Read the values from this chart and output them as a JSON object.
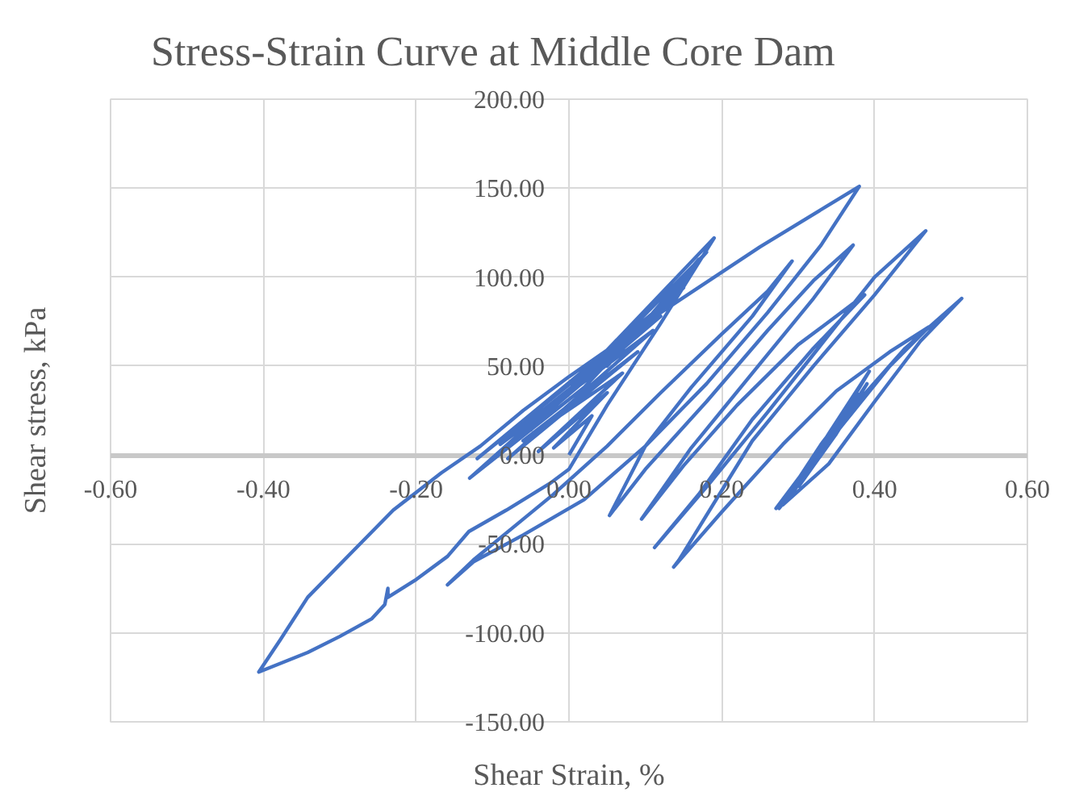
{
  "chart_data": {
    "type": "line",
    "title": "Stress-Strain Curve at Middle Core Dam",
    "xlabel": "Shear Strain, %",
    "ylabel": "Shear stress, kPa",
    "series": [
      {
        "color": "#4472c4",
        "x": [
          0.0,
          0.03,
          -0.02,
          0.05,
          -0.04,
          0.07,
          -0.06,
          0.09,
          -0.08,
          0.11,
          -0.09,
          0.12,
          -0.11,
          0.14,
          -0.12,
          0.15,
          -0.13,
          0.02,
          0.16,
          0.05,
          0.17,
          0.07,
          0.18,
          -0.05,
          0.19,
          0.12,
          0.05,
          0.0,
          -0.025,
          -0.082,
          -0.131,
          -0.159,
          -0.2,
          -0.237,
          -0.237,
          -0.241,
          -0.258,
          -0.3,
          -0.342,
          -0.406,
          -0.378,
          -0.342,
          -0.285,
          -0.23,
          -0.167,
          -0.116,
          -0.06,
          0.0,
          0.12,
          0.25,
          0.38,
          0.33,
          0.26,
          0.18,
          0.1,
          0.02,
          -0.06,
          -0.125,
          -0.159,
          -0.125,
          -0.074,
          -0.02,
          0.05,
          0.12,
          0.2,
          0.26,
          0.292,
          0.24,
          0.16,
          0.1,
          0.053,
          0.1,
          0.18,
          0.26,
          0.32,
          0.372,
          0.32,
          0.24,
          0.16,
          0.095,
          0.15,
          0.22,
          0.3,
          0.35,
          0.387,
          0.32,
          0.24,
          0.17,
          0.112,
          0.18,
          0.26,
          0.33,
          0.4,
          0.467,
          0.4,
          0.32,
          0.24,
          0.144,
          0.137,
          0.2,
          0.28,
          0.35,
          0.42,
          0.471,
          0.42,
          0.36,
          0.3,
          0.271,
          0.32,
          0.376,
          0.44,
          0.514,
          0.46,
          0.4,
          0.34,
          0.28,
          0.33,
          0.393,
          0.34,
          0.285,
          0.34,
          0.376,
          0.32,
          0.275,
          0.33,
          0.38,
          0.33,
          0.29,
          0.35,
          0.39,
          0.35,
          0.3
        ],
        "values": [
          0,
          22,
          4,
          35,
          2,
          46,
          8,
          58,
          -2,
          70,
          6,
          78,
          -6,
          88,
          -2,
          94,
          -13,
          38,
          102,
          50,
          110,
          60,
          114,
          14,
          122,
          74,
          28,
          -8,
          -16,
          -31,
          -43,
          -57,
          -70,
          -80,
          -75,
          -84,
          -92,
          -102,
          -111,
          -122,
          -104,
          -80,
          -55,
          -31,
          -10,
          5,
          25,
          44,
          80,
          117,
          151,
          118,
          80,
          40,
          5,
          -25,
          -45,
          -60,
          -73,
          -59,
          -41,
          -22,
          5,
          35,
          68,
          92,
          109,
          78,
          38,
          5,
          -34,
          -8,
          30,
          70,
          98,
          118,
          88,
          46,
          4,
          -36,
          -6,
          28,
          62,
          78,
          90,
          60,
          20,
          -22,
          -52,
          -18,
          24,
          62,
          100,
          126,
          90,
          50,
          8,
          -59,
          -63,
          -32,
          6,
          36,
          58,
          72,
          50,
          18,
          -14,
          -30,
          -2,
          29,
          60,
          88,
          64,
          30,
          -5,
          -28,
          2,
          47,
          12,
          -26,
          8,
          29,
          -6,
          -30,
          6,
          34,
          0,
          -22,
          14,
          40,
          12,
          -18
        ]
      }
    ],
    "xlim": [
      -0.6,
      0.6
    ],
    "ylim": [
      -150,
      200
    ],
    "xticks": [
      {
        "value": -0.6,
        "label": "-0.60"
      },
      {
        "value": -0.4,
        "label": "-0.40"
      },
      {
        "value": -0.2,
        "label": "-0.20"
      },
      {
        "value": 0,
        "label": "0.00"
      },
      {
        "value": 0.2,
        "label": "0.20"
      },
      {
        "value": 0.4,
        "label": "0.40"
      },
      {
        "value": 0.6,
        "label": "0.60"
      }
    ],
    "yticks": [
      {
        "value": -150,
        "label": "-150.00"
      },
      {
        "value": -100,
        "label": "-100.00"
      },
      {
        "value": -50,
        "label": "-50.00"
      },
      {
        "value": 0,
        "label": "0.00"
      },
      {
        "value": 50,
        "label": "50.00"
      },
      {
        "value": 100,
        "label": "100.00"
      },
      {
        "value": 150,
        "label": "150.00"
      },
      {
        "value": 200,
        "label": "200.00"
      }
    ],
    "grid": true,
    "marker": "none",
    "line_style": "solid"
  }
}
